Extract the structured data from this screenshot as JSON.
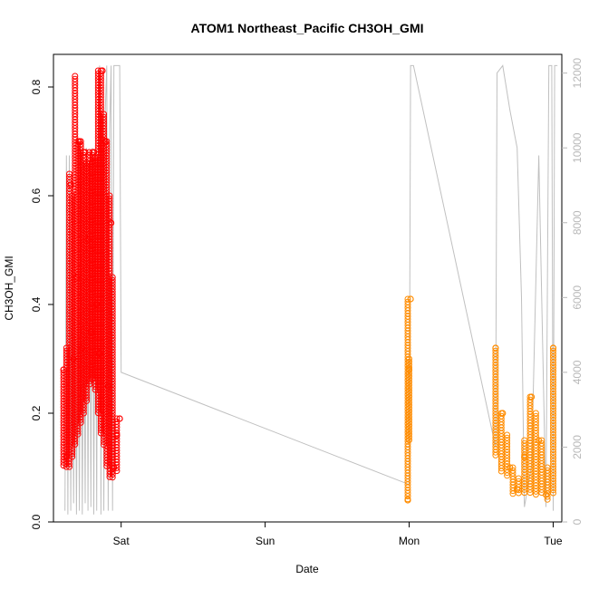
{
  "chart_data": {
    "type": "scatter",
    "title": "ATOM1 Northeast_Pacific CH3OH_GMI",
    "xlabel": "Date",
    "ylabel": "CH3OH_GMI",
    "x_ticks": [
      "Sat",
      "Sun",
      "Mon",
      "Tue"
    ],
    "x_range_days": [
      -0.47,
      3.06
    ],
    "ylim": [
      0,
      0.86
    ],
    "y_ticks": [
      "0.0",
      "0.2",
      "0.4",
      "0.6",
      "0.8"
    ],
    "y_tick_values": [
      0,
      0.2,
      0.4,
      0.6,
      0.8
    ],
    "y2lim": [
      0,
      12500
    ],
    "y2_ticks": [
      "0",
      "2000",
      "4000",
      "6000",
      "8000",
      "10000",
      "12000"
    ],
    "y2_tick_values": [
      0,
      2000,
      4000,
      6000,
      8000,
      10000,
      12000
    ],
    "colors": {
      "series_1": "#ff0000",
      "series_2": "#ff8c00",
      "altitude": "#c0c0c0"
    },
    "series": [
      {
        "color_key": "series_1",
        "x_days": [
          -0.4,
          -0.38,
          -0.35,
          -0.33,
          -0.31,
          -0.29,
          -0.27,
          -0.25,
          -0.23,
          -0.21,
          -0.19,
          -0.17,
          -0.15,
          -0.13,
          -0.11,
          -0.09,
          -0.07,
          -0.05,
          -0.03,
          -0.01
        ],
        "y": [
          0.28,
          0.12,
          0.62,
          0.3,
          0.45,
          0.7,
          0.32,
          0.68,
          0.52,
          0.35,
          0.68,
          0.4,
          0.31,
          0.83,
          0.7,
          0.25,
          0.55,
          0.1,
          0.16,
          0.19
        ],
        "envelopes": [
          {
            "x": -0.4,
            "ymin": 0.1,
            "ymax": 0.28
          },
          {
            "x": -0.38,
            "ymin": 0.1,
            "ymax": 0.32
          },
          {
            "x": -0.36,
            "ymin": 0.1,
            "ymax": 0.64
          },
          {
            "x": -0.34,
            "ymin": 0.12,
            "ymax": 0.6
          },
          {
            "x": -0.32,
            "ymin": 0.14,
            "ymax": 0.82
          },
          {
            "x": -0.3,
            "ymin": 0.16,
            "ymax": 0.7
          },
          {
            "x": -0.28,
            "ymin": 0.18,
            "ymax": 0.7
          },
          {
            "x": -0.26,
            "ymin": 0.2,
            "ymax": 0.68
          },
          {
            "x": -0.24,
            "ymin": 0.22,
            "ymax": 0.66
          },
          {
            "x": -0.22,
            "ymin": 0.25,
            "ymax": 0.68
          },
          {
            "x": -0.2,
            "ymin": 0.26,
            "ymax": 0.68
          },
          {
            "x": -0.18,
            "ymin": 0.24,
            "ymax": 0.67
          },
          {
            "x": -0.16,
            "ymin": 0.2,
            "ymax": 0.83
          },
          {
            "x": -0.14,
            "ymin": 0.16,
            "ymax": 0.83
          },
          {
            "x": -0.12,
            "ymin": 0.14,
            "ymax": 0.75
          },
          {
            "x": -0.1,
            "ymin": 0.1,
            "ymax": 0.7
          },
          {
            "x": -0.08,
            "ymin": 0.08,
            "ymax": 0.6
          },
          {
            "x": -0.06,
            "ymin": 0.08,
            "ymax": 0.45
          },
          {
            "x": -0.03,
            "ymin": 0.09,
            "ymax": 0.19
          }
        ]
      },
      {
        "color_key": "series_2",
        "x_days": [
          1.99,
          2.0,
          2.01,
          2.6,
          2.65,
          2.7,
          2.75,
          2.8,
          2.85,
          2.9,
          2.95,
          3.0
        ],
        "y": [
          0.04,
          0.28,
          0.41,
          0.32,
          0.2,
          0.1,
          0.06,
          0.12,
          0.23,
          0.15,
          0.05,
          0.32
        ],
        "envelopes": [
          {
            "x": 1.99,
            "ymin": 0.04,
            "ymax": 0.41
          },
          {
            "x": 2.0,
            "ymin": 0.15,
            "ymax": 0.3
          },
          {
            "x": 2.6,
            "ymin": 0.12,
            "ymax": 0.32
          },
          {
            "x": 2.64,
            "ymin": 0.09,
            "ymax": 0.2
          },
          {
            "x": 2.68,
            "ymin": 0.08,
            "ymax": 0.16
          },
          {
            "x": 2.72,
            "ymin": 0.05,
            "ymax": 0.1
          },
          {
            "x": 2.76,
            "ymin": 0.05,
            "ymax": 0.08
          },
          {
            "x": 2.8,
            "ymin": 0.05,
            "ymax": 0.15
          },
          {
            "x": 2.84,
            "ymin": 0.05,
            "ymax": 0.23
          },
          {
            "x": 2.88,
            "ymin": 0.05,
            "ymax": 0.2
          },
          {
            "x": 2.92,
            "ymin": 0.05,
            "ymax": 0.15
          },
          {
            "x": 2.96,
            "ymin": 0.04,
            "ymax": 0.1
          },
          {
            "x": 3.0,
            "ymin": 0.05,
            "ymax": 0.32
          }
        ]
      }
    ],
    "altitude_series": {
      "color_key": "altitude",
      "x_days": [
        -0.39,
        -0.38,
        -0.37,
        -0.36,
        -0.35,
        -0.34,
        -0.33,
        -0.32,
        -0.31,
        -0.3,
        -0.29,
        -0.28,
        -0.27,
        -0.26,
        -0.25,
        -0.24,
        -0.23,
        -0.22,
        -0.21,
        -0.2,
        -0.19,
        -0.18,
        -0.17,
        -0.16,
        -0.15,
        -0.14,
        -0.13,
        -0.12,
        -0.11,
        -0.1,
        -0.09,
        -0.08,
        -0.07,
        -0.06,
        -0.05,
        -0.04,
        -0.03,
        -0.02,
        -0.01,
        0.0,
        2.0,
        2.01,
        2.02,
        2.03,
        2.6,
        2.61,
        2.65,
        2.7,
        2.75,
        2.78,
        2.8,
        2.85,
        2.9,
        2.95,
        2.97,
        2.99,
        3.0,
        3.01,
        3.03
      ],
      "y": [
        300,
        9800,
        200,
        9800,
        300,
        8800,
        500,
        6200,
        200,
        7000,
        300,
        9000,
        200,
        6500,
        500,
        10000,
        300,
        9200,
        400,
        10000,
        200,
        9500,
        300,
        10500,
        12200,
        200,
        10000,
        300,
        11000,
        12200,
        300,
        10500,
        12200,
        300,
        12200,
        12200,
        12200,
        12200,
        12200,
        4000,
        1000,
        12200,
        12200,
        12200,
        2000,
        12000,
        12200,
        11000,
        10000,
        6000,
        400,
        1500,
        9800,
        400,
        12200,
        12200,
        300,
        12200,
        12200
      ]
    }
  }
}
